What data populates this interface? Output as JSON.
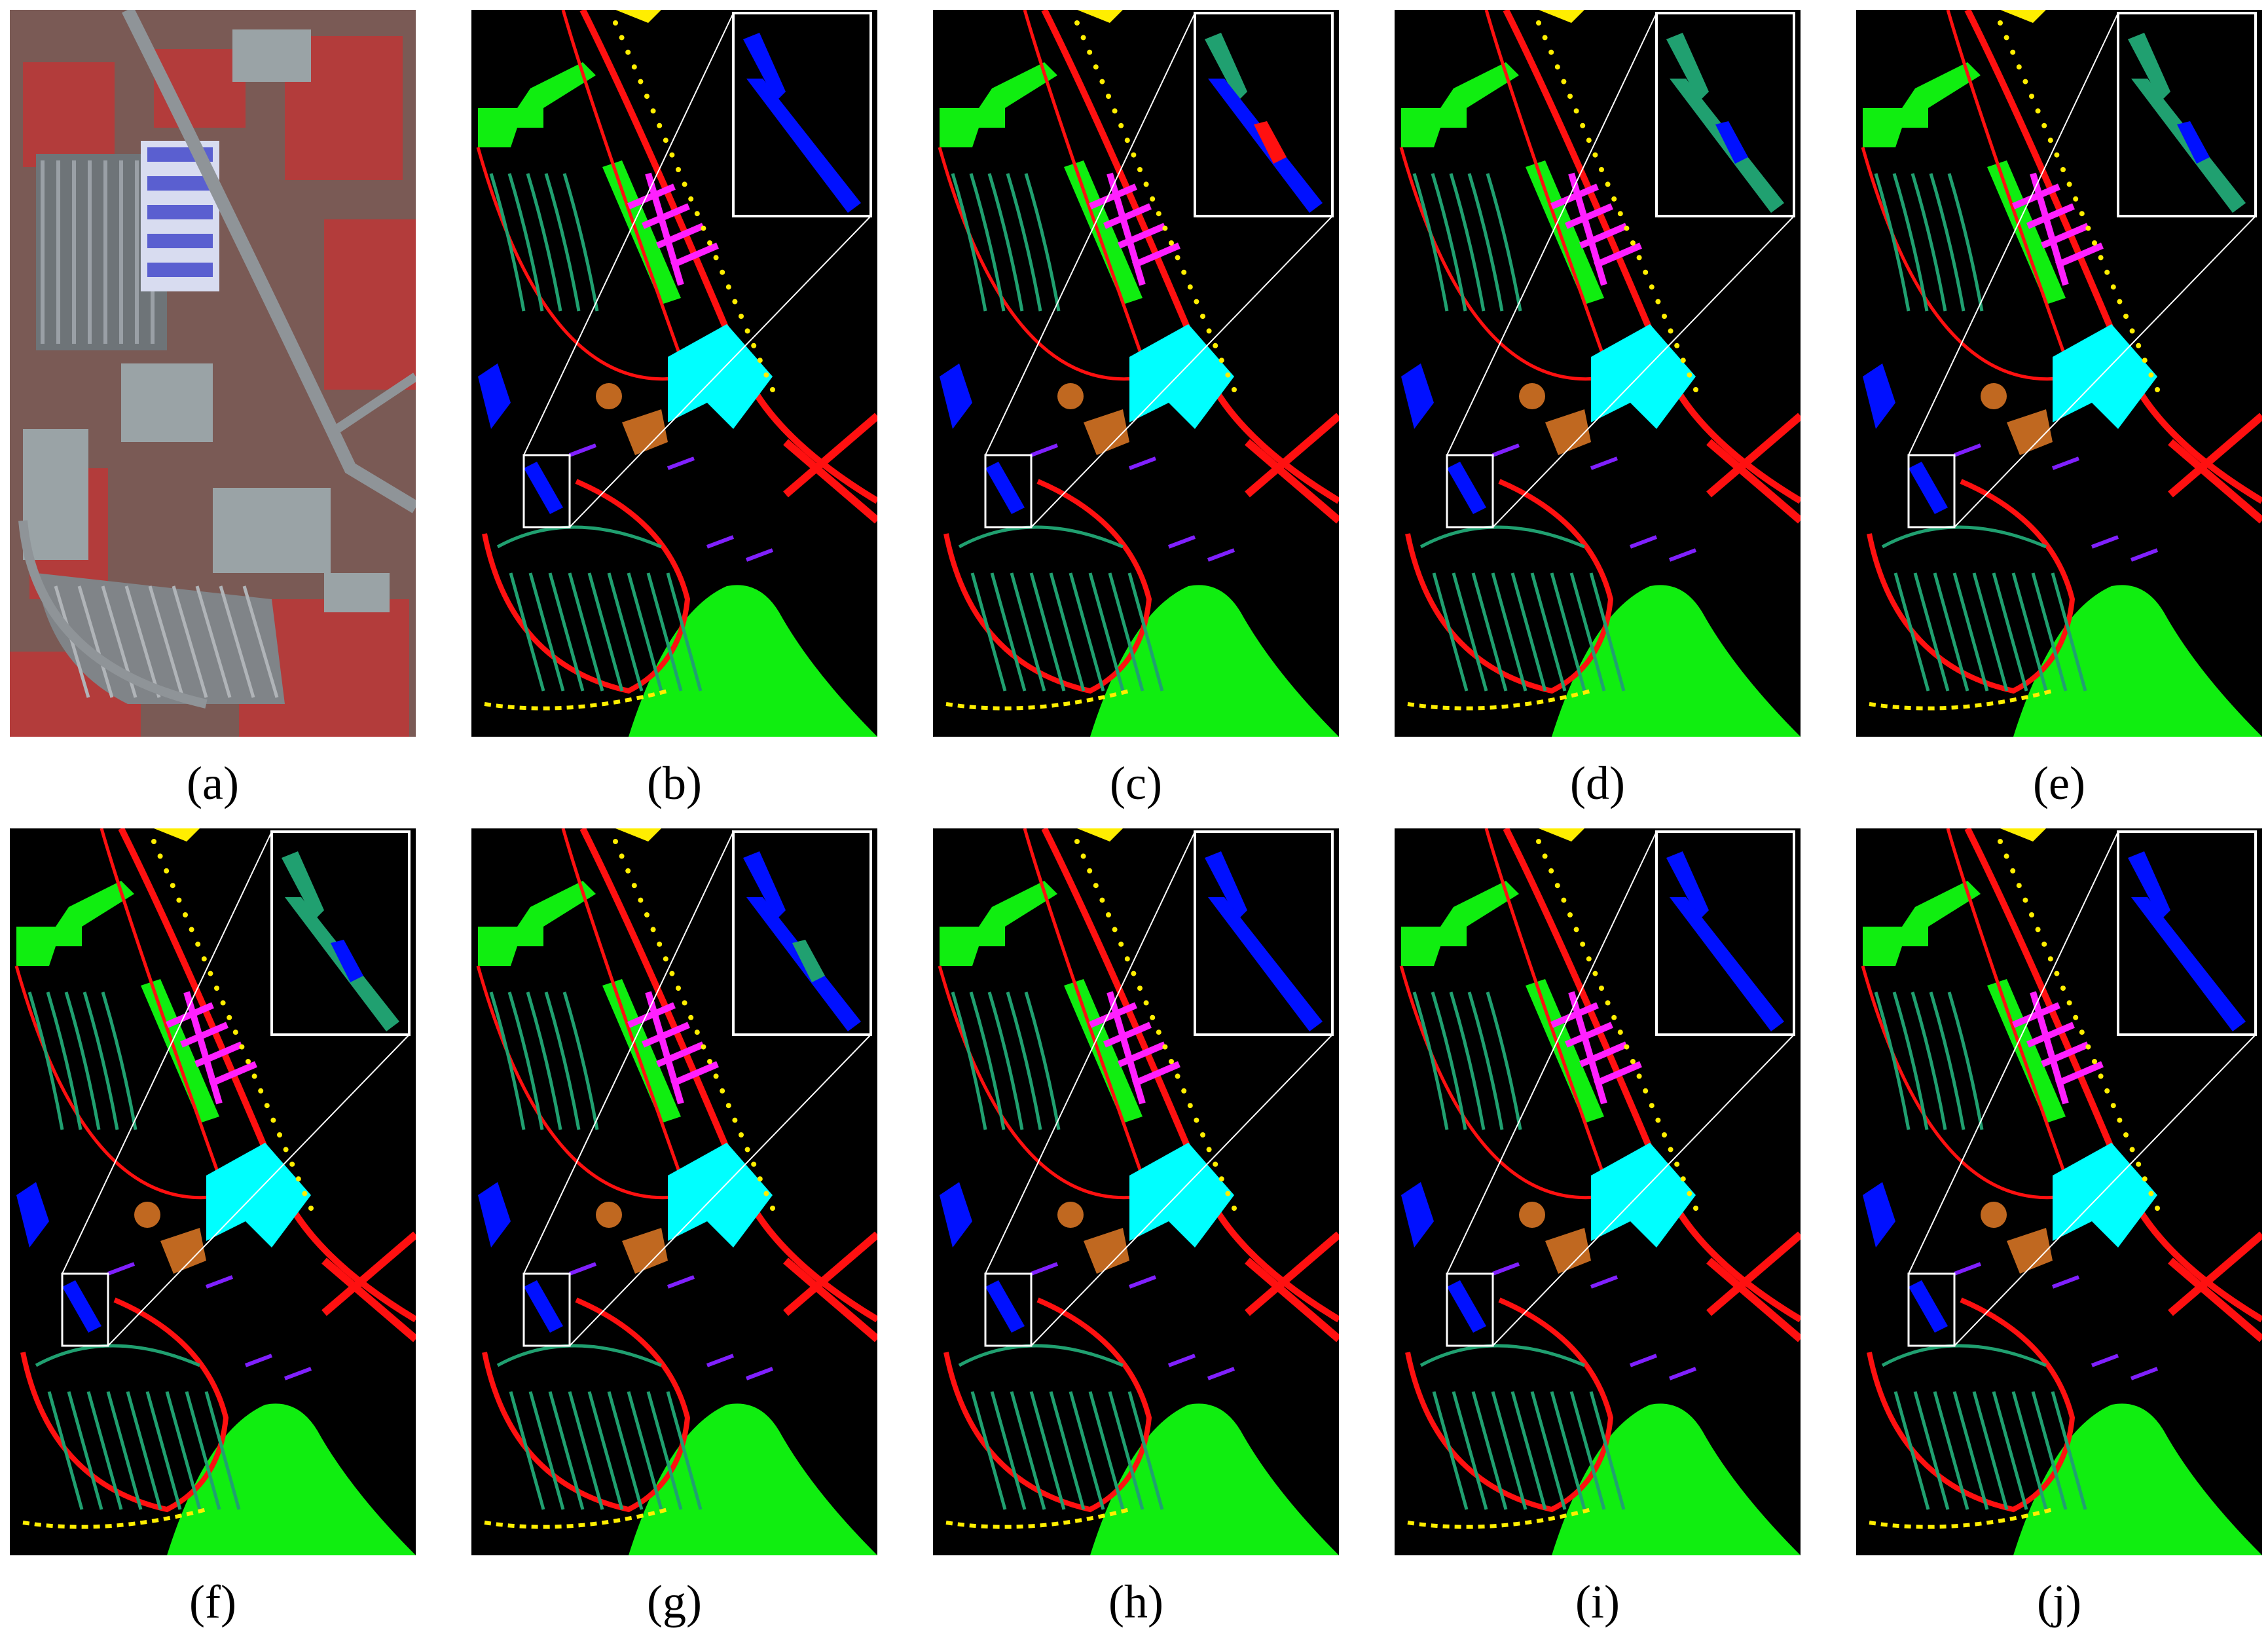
{
  "figure": {
    "panels": [
      {
        "label": "(a)",
        "kind": "false-color"
      },
      {
        "label": "(b)",
        "kind": "map",
        "inset": "blue"
      },
      {
        "label": "(c)",
        "kind": "map",
        "inset": "mixed-red"
      },
      {
        "label": "(d)",
        "kind": "map",
        "inset": "teal-blue"
      },
      {
        "label": "(e)",
        "kind": "map",
        "inset": "teal-blue"
      },
      {
        "label": "(f)",
        "kind": "map",
        "inset": "teal-blue"
      },
      {
        "label": "(g)",
        "kind": "map",
        "inset": "blue-teal"
      },
      {
        "label": "(h)",
        "kind": "map",
        "inset": "blue"
      },
      {
        "label": "(i)",
        "kind": "map",
        "inset": "blue"
      },
      {
        "label": "(j)",
        "kind": "map",
        "inset": "blue"
      }
    ]
  },
  "colors": {
    "background": "#000000",
    "roads": "#ff1010",
    "meadows": "#10ee10",
    "trees": "#20a070",
    "painted_metal": "#00ffff",
    "bitumen": "#ff20ff",
    "bricks": "#ffee00",
    "shadows": "#8020ff",
    "gravel": "#0010ff",
    "soil": "#c06820",
    "inset_border": "#ffffff"
  }
}
